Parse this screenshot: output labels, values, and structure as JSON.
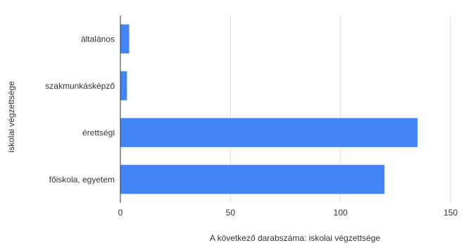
{
  "chart_data": {
    "type": "bar",
    "orientation": "horizontal",
    "title": "",
    "categories": [
      "általános",
      "szakmunkásképző",
      "érettségi",
      "főiskola, egyetem"
    ],
    "series": [
      {
        "values": [
          4,
          3,
          135,
          120
        ]
      }
    ],
    "xlabel": "A következő darabszáma: iskolai végzettsége",
    "ylabel": "iskolai végzettsége",
    "xlim": [
      0,
      150
    ],
    "xticks": [
      "0",
      "50",
      "100",
      "150"
    ],
    "grid": "vertical",
    "legend": "none",
    "bar_color": "#4285f4",
    "grid_color": "#e0e0e0",
    "axis_color": "#333333"
  }
}
